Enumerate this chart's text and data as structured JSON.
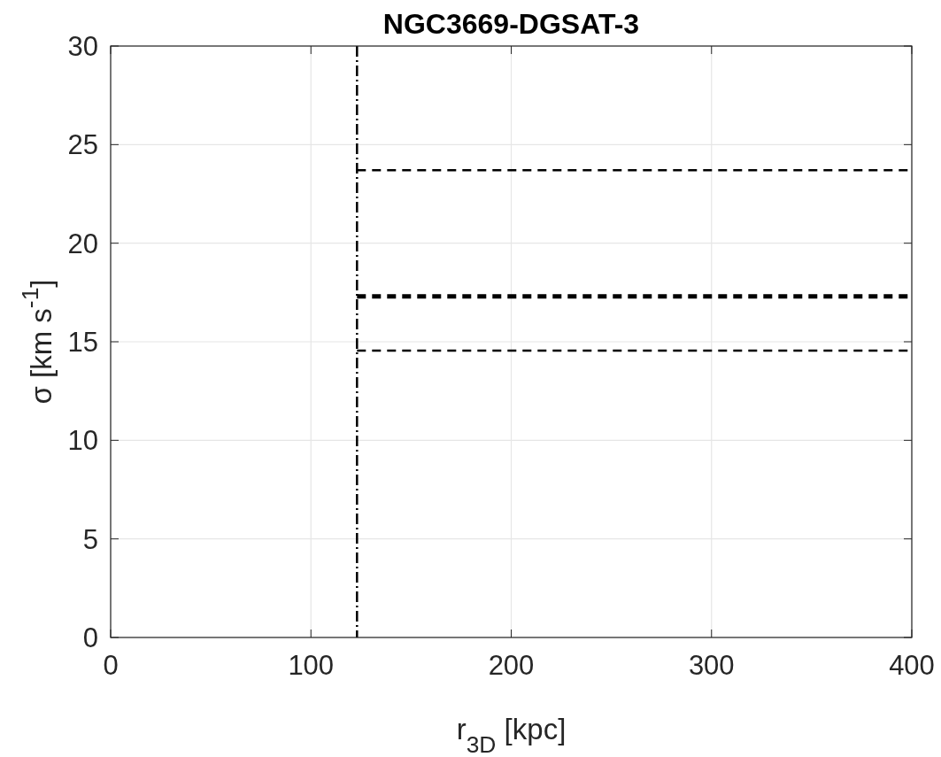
{
  "chart_data": {
    "type": "line",
    "title": "NGC3669-DGSAT-3",
    "xlabel": "r$_{3D}$ [kpc]",
    "ylabel": "σ [km s$^{-1}$]",
    "xlim": [
      0,
      400
    ],
    "xticks": [
      0,
      100,
      200,
      300,
      400
    ],
    "ylim": [
      0,
      30
    ],
    "yticks": [
      0,
      5,
      10,
      15,
      20,
      25,
      30
    ],
    "grid": true,
    "line_style": "dashed",
    "x": [
      123,
      400
    ],
    "series": [
      {
        "color": "#000000",
        "values": [
          23.7,
          23.7
        ]
      },
      {
        "color": "#000000",
        "values": [
          17.3,
          17.3
        ]
      },
      {
        "color": "#000000",
        "values": [
          14.55,
          14.55
        ]
      }
    ],
    "ref_lines": [
      {
        "axis": "x",
        "value": 123,
        "color": "#000000",
        "line_style": "dashed"
      }
    ]
  }
}
